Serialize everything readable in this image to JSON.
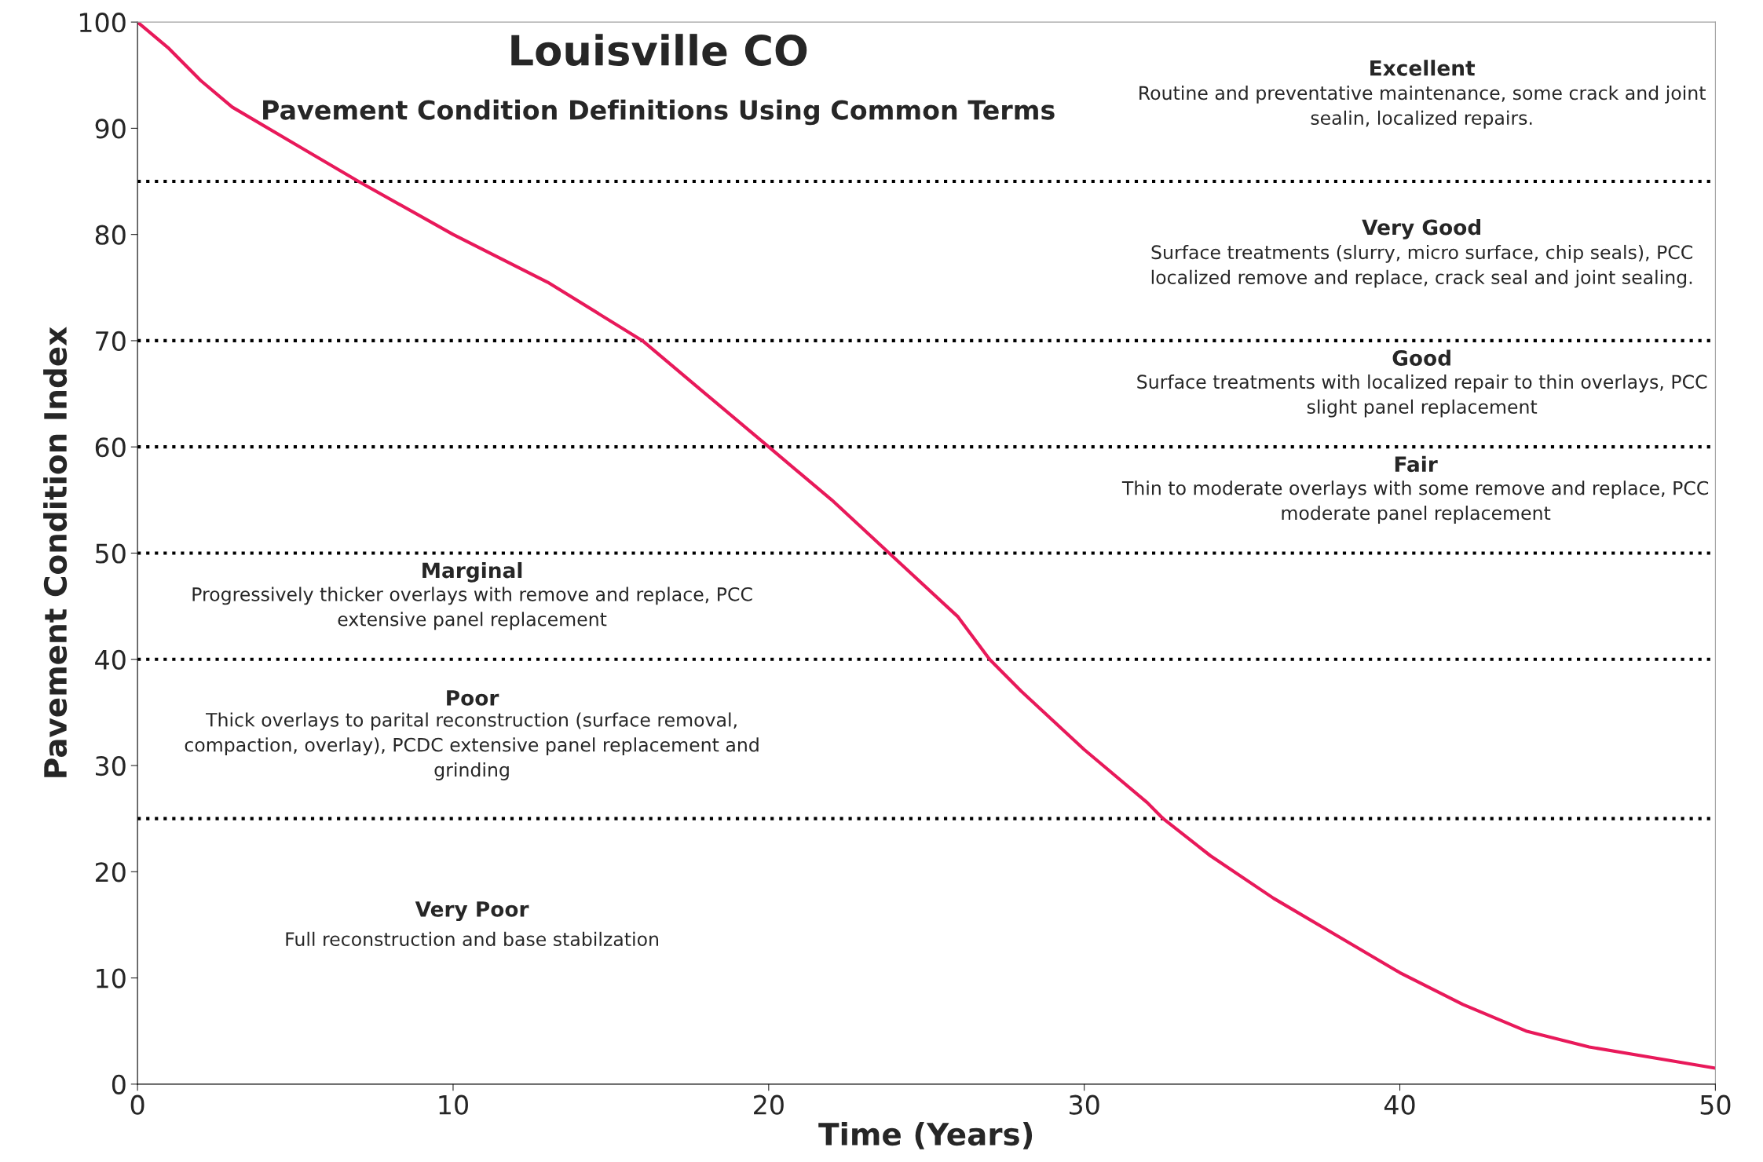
{
  "chart_data": {
    "type": "line",
    "title": "Louisville CO",
    "subtitle": "Pavement Condition Definitions Using Common Terms",
    "xlabel": "Time (Years)",
    "ylabel": "Pavement Condition Index",
    "x": [
      0,
      1,
      2,
      3,
      5,
      7,
      10,
      13,
      16,
      18,
      20,
      22,
      24,
      26,
      27,
      28,
      30,
      32,
      32.5,
      34,
      36,
      38,
      40,
      42,
      44,
      46,
      48,
      50
    ],
    "series": [
      {
        "color": "#e8195a",
        "values": [
          100,
          97.5,
          94.5,
          92,
          88.5,
          85,
          80,
          75.5,
          70,
          65,
          60,
          55,
          49.5,
          44,
          40,
          37,
          31.5,
          26.5,
          25,
          21.5,
          17.5,
          14,
          10.5,
          7.5,
          5,
          3.5,
          2.5,
          1.5
        ]
      }
    ],
    "xlim": [
      0,
      50
    ],
    "ylim": [
      0,
      100
    ],
    "xticks": [
      0,
      10,
      20,
      30,
      40,
      50
    ],
    "yticks": [
      0,
      10,
      20,
      30,
      40,
      50,
      60,
      70,
      80,
      90,
      100
    ],
    "grid": false,
    "legend": false,
    "marker": "none",
    "line_style": "solid",
    "ref_lines": [
      {
        "axis": "y",
        "value": 85,
        "color": "#000000",
        "line_style": "dotted"
      },
      {
        "axis": "y",
        "value": 70,
        "color": "#000000",
        "line_style": "dotted"
      },
      {
        "axis": "y",
        "value": 60,
        "color": "#000000",
        "line_style": "dotted"
      },
      {
        "axis": "y",
        "value": 50,
        "color": "#000000",
        "line_style": "dotted"
      },
      {
        "axis": "y",
        "value": 40,
        "color": "#000000",
        "line_style": "dotted"
      },
      {
        "axis": "y",
        "value": 25,
        "color": "#000000",
        "line_style": "dotted"
      }
    ],
    "annotations": [
      "Excellent",
      "Routine and preventative maintenance, some crack and joint\nsealin, localized repairs.",
      "Very Good",
      "Surface treatments (slurry, micro surface, chip seals), PCC\nlocalized remove and replace, crack seal and joint sealing.",
      "Good",
      "Surface treatments with localized repair to thin overlays, PCC\nslight panel replacement",
      "Fair",
      "Thin to moderate overlays with some remove and replace, PCC\nmoderate panel replacement",
      "Marginal",
      "Progressively thicker overlays with remove and replace, PCC\nextensive panel replacement",
      "Poor",
      "Thick overlays to parital reconstruction (surface removal,\ncompaction, overlay), PCDC extensive panel replacement and\ngrinding",
      "Very Poor",
      "Full reconstruction and base stabilzation"
    ]
  }
}
